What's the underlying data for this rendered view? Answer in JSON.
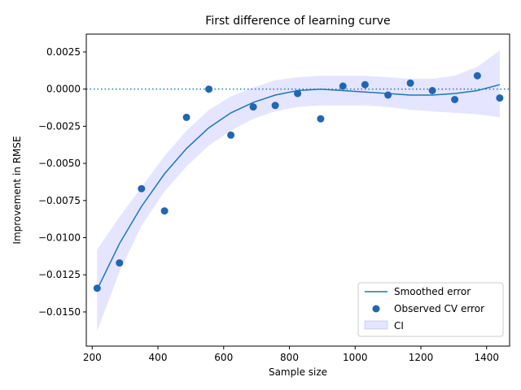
{
  "chart_data": {
    "type": "scatter",
    "title": "First difference of learning curve",
    "xlabel": "Sample size",
    "ylabel": "Improvement in RMSE",
    "xlim": [
      182,
      1470
    ],
    "ylim": [
      -0.0173,
      0.0037
    ],
    "x_ticks": [
      200,
      400,
      600,
      800,
      1000,
      1200,
      1400
    ],
    "x_tick_labels": [
      "200",
      "400",
      "600",
      "800",
      "1000",
      "1200",
      "1400"
    ],
    "y_ticks": [
      0.0025,
      0.0,
      -0.0025,
      -0.005,
      -0.0075,
      -0.01,
      -0.0125,
      -0.015
    ],
    "y_tick_labels": [
      "0.0025",
      "0.0000",
      "−0.0025",
      "−0.0050",
      "−0.0075",
      "−0.0100",
      "−0.0125",
      "−0.0150"
    ],
    "reference_line": {
      "y": 0.0,
      "style": "dotted",
      "color": "#1f77b4"
    },
    "grid": false,
    "legend_position": "lower-right",
    "series": [
      {
        "name": "Smoothed error",
        "kind": "line",
        "color": "#1f77b4",
        "x": [
          215,
          283,
          350,
          420,
          487,
          555,
          622,
          690,
          757,
          825,
          895,
          963,
          1030,
          1100,
          1168,
          1235,
          1303,
          1372,
          1440
        ],
        "y": [
          -0.0135,
          -0.0104,
          -0.0079,
          -0.0057,
          -0.004,
          -0.0026,
          -0.0016,
          -0.0009,
          -0.0004,
          -0.0001,
          0.0,
          -0.0001,
          -0.0002,
          -0.0003,
          -0.0004,
          -0.0004,
          -0.0003,
          -0.0001,
          0.0003
        ]
      },
      {
        "name": "Observed CV error",
        "kind": "scatter",
        "color": "#1f67b3",
        "x": [
          215,
          283,
          350,
          420,
          487,
          555,
          622,
          690,
          757,
          825,
          895,
          963,
          1030,
          1100,
          1168,
          1235,
          1303,
          1372,
          1440
        ],
        "y": [
          -0.0134,
          -0.0117,
          -0.0067,
          -0.0082,
          -0.0019,
          0.0,
          -0.0031,
          -0.0012,
          -0.0011,
          -0.0003,
          -0.002,
          0.0002,
          0.0003,
          -0.0004,
          0.0004,
          -0.0001,
          -0.0007,
          0.0009,
          -0.0006
        ]
      },
      {
        "name": "CI",
        "kind": "band",
        "color": "#0000ff",
        "opacity": 0.1,
        "x": [
          215,
          283,
          350,
          420,
          487,
          555,
          622,
          690,
          757,
          825,
          895,
          963,
          1030,
          1100,
          1168,
          1235,
          1303,
          1372,
          1440
        ],
        "lower": [
          -0.0163,
          -0.0123,
          -0.0092,
          -0.0069,
          -0.0052,
          -0.0038,
          -0.0028,
          -0.002,
          -0.0015,
          -0.0012,
          -0.0011,
          -0.0011,
          -0.0011,
          -0.0012,
          -0.0014,
          -0.0015,
          -0.0016,
          -0.0017,
          -0.0019
        ],
        "upper": [
          -0.0108,
          -0.0086,
          -0.0066,
          -0.0045,
          -0.0028,
          -0.0014,
          -0.0005,
          0.0001,
          0.0006,
          0.0008,
          0.0009,
          0.0009,
          0.0009,
          0.0008,
          0.0007,
          0.0007,
          0.0009,
          0.0015,
          0.0026
        ]
      }
    ]
  }
}
